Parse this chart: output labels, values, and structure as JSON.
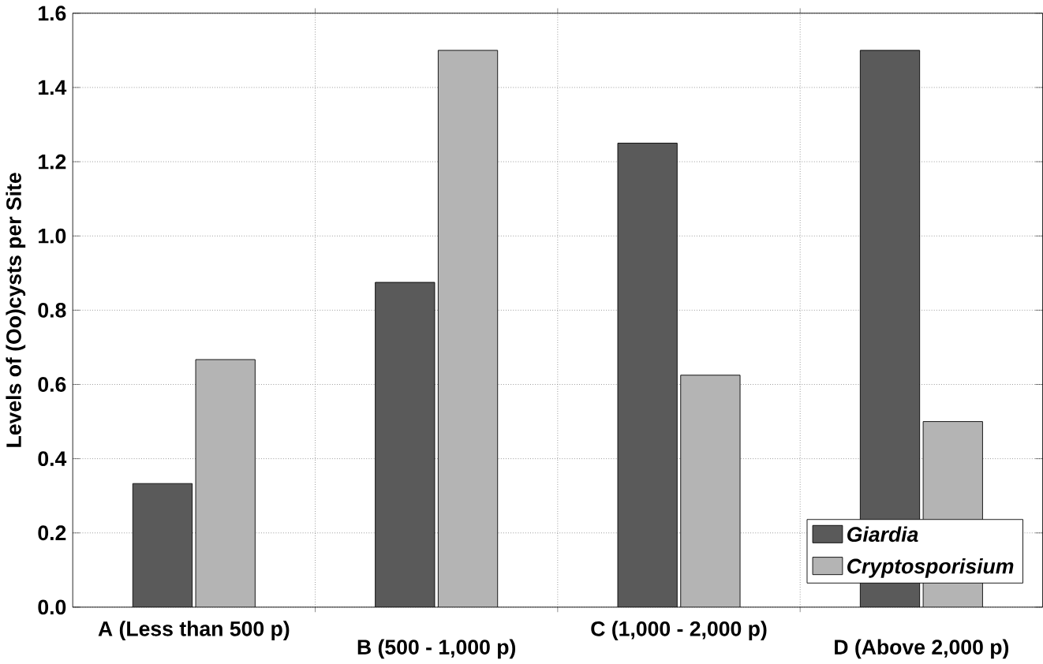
{
  "chart_data": {
    "type": "bar",
    "ylabel": "Levels of (Oo)cysts per Site",
    "categories": [
      "A (Less than 500 p)",
      "B (500 - 1,000 p)",
      "C (1,000 - 2,000 p)",
      "D (Above 2,000 p)"
    ],
    "series": [
      {
        "name": "Giardia",
        "color": "#5a5a5a",
        "values": [
          0.333,
          0.875,
          1.25,
          1.5
        ]
      },
      {
        "name": "Cryptosporisium",
        "color": "#b4b4b4",
        "values": [
          0.667,
          1.5,
          0.625,
          0.5
        ]
      }
    ],
    "ylim": [
      0,
      1.6
    ],
    "yticks": [
      {
        "value": 0,
        "label": "0.0"
      },
      0.2,
      0.4,
      0.6,
      0.8,
      {
        "value": 1,
        "label": "1.0"
      },
      1.2,
      1.4,
      1.6
    ],
    "grid": true,
    "legend": "bottom right"
  }
}
